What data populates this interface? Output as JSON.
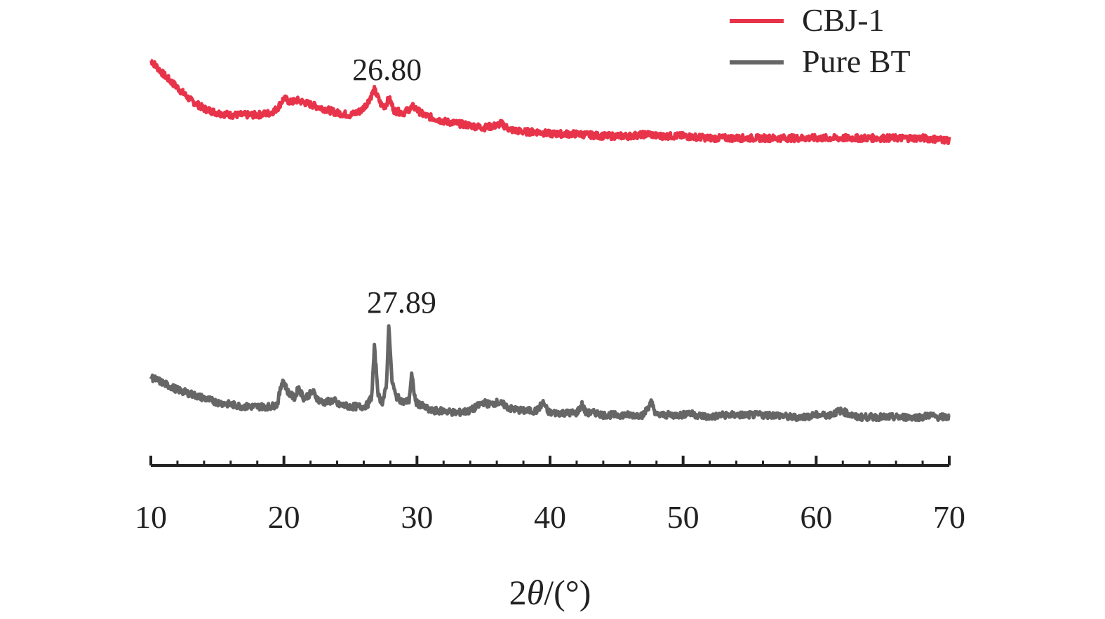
{
  "chart_data": {
    "type": "line",
    "xlabel_prefix": "2",
    "xlabel_symbol": "θ",
    "xlabel_suffix": "/(°)",
    "ylabel": "",
    "xlim": [
      10,
      70
    ],
    "x_ticks": [
      10,
      20,
      30,
      40,
      50,
      60,
      70
    ],
    "y_axis_visible": false,
    "grid": false,
    "legend_position": "top-right",
    "series": [
      {
        "name": "CBJ-1",
        "color": "#e8344a",
        "points": [
          [
            10,
            100
          ],
          [
            11,
            93
          ],
          [
            12,
            87
          ],
          [
            13,
            81
          ],
          [
            14,
            77
          ],
          [
            15,
            75
          ],
          [
            16,
            74
          ],
          [
            17,
            74
          ],
          [
            18,
            74
          ],
          [
            19,
            75
          ],
          [
            19.5,
            77
          ],
          [
            20,
            82
          ],
          [
            20.5,
            80
          ],
          [
            21,
            81
          ],
          [
            22,
            79
          ],
          [
            23,
            77
          ],
          [
            24,
            75
          ],
          [
            25,
            74
          ],
          [
            25.8,
            76
          ],
          [
            26.3,
            80
          ],
          [
            26.8,
            86
          ],
          [
            27.3,
            79
          ],
          [
            27.6,
            78
          ],
          [
            27.9,
            82
          ],
          [
            28.3,
            76
          ],
          [
            29,
            75
          ],
          [
            29.7,
            78
          ],
          [
            30.5,
            74
          ],
          [
            31,
            73
          ],
          [
            32,
            71
          ],
          [
            33,
            70
          ],
          [
            34,
            69
          ],
          [
            35,
            68
          ],
          [
            36,
            69
          ],
          [
            36.3,
            70
          ],
          [
            37,
            67
          ],
          [
            38,
            66
          ],
          [
            39,
            66
          ],
          [
            40,
            65
          ],
          [
            42,
            65
          ],
          [
            44,
            64
          ],
          [
            46,
            64
          ],
          [
            47.5,
            65
          ],
          [
            48,
            64
          ],
          [
            50,
            64
          ],
          [
            52,
            63
          ],
          [
            54,
            63
          ],
          [
            56,
            63
          ],
          [
            58,
            63
          ],
          [
            60,
            63
          ],
          [
            62,
            63
          ],
          [
            64,
            63
          ],
          [
            66,
            63
          ],
          [
            68,
            63
          ],
          [
            70,
            62
          ]
        ]
      },
      {
        "name": "Pure BT",
        "color": "#666666",
        "points": [
          [
            10,
            27
          ],
          [
            11,
            24
          ],
          [
            12,
            21
          ],
          [
            13,
            19
          ],
          [
            14,
            17
          ],
          [
            15,
            15
          ],
          [
            16,
            14
          ],
          [
            17,
            13
          ],
          [
            18,
            13
          ],
          [
            19,
            13
          ],
          [
            19.5,
            14
          ],
          [
            19.9,
            26
          ],
          [
            20.3,
            20
          ],
          [
            20.8,
            17
          ],
          [
            21.1,
            22
          ],
          [
            21.5,
            17
          ],
          [
            22.2,
            20
          ],
          [
            22.6,
            16
          ],
          [
            23,
            15
          ],
          [
            23.8,
            16
          ],
          [
            24,
            14
          ],
          [
            25,
            13
          ],
          [
            26,
            13
          ],
          [
            26.3,
            14
          ],
          [
            26.6,
            18
          ],
          [
            26.8,
            41
          ],
          [
            27.1,
            18
          ],
          [
            27.4,
            15
          ],
          [
            27.7,
            22
          ],
          [
            27.89,
            53
          ],
          [
            28.1,
            26
          ],
          [
            28.4,
            18
          ],
          [
            29,
            15
          ],
          [
            29.4,
            16
          ],
          [
            29.6,
            28
          ],
          [
            29.9,
            15
          ],
          [
            30.5,
            13
          ],
          [
            31,
            11
          ],
          [
            32,
            11
          ],
          [
            33,
            10
          ],
          [
            34,
            11
          ],
          [
            34.5,
            13
          ],
          [
            35,
            15
          ],
          [
            35.5,
            14
          ],
          [
            36,
            15
          ],
          [
            36.5,
            14
          ],
          [
            37,
            12
          ],
          [
            38,
            11
          ],
          [
            39,
            11
          ],
          [
            39.5,
            15
          ],
          [
            39.8,
            11
          ],
          [
            40,
            10
          ],
          [
            41,
            10
          ],
          [
            42,
            10
          ],
          [
            42.4,
            14
          ],
          [
            42.7,
            10
          ],
          [
            43.5,
            10
          ],
          [
            44,
            9
          ],
          [
            46,
            9
          ],
          [
            47,
            9
          ],
          [
            47.6,
            15
          ],
          [
            48,
            9
          ],
          [
            49,
            9
          ],
          [
            50,
            9
          ],
          [
            50.3,
            10
          ],
          [
            51,
            9
          ],
          [
            52,
            8
          ],
          [
            53,
            9
          ],
          [
            54,
            9
          ],
          [
            55,
            9
          ],
          [
            56,
            9
          ],
          [
            57,
            9
          ],
          [
            58,
            8
          ],
          [
            59,
            8
          ],
          [
            60,
            9
          ],
          [
            60.5,
            9
          ],
          [
            61,
            9
          ],
          [
            61.8,
            11
          ],
          [
            62.3,
            10
          ],
          [
            63,
            8
          ],
          [
            64,
            8
          ],
          [
            65,
            8
          ],
          [
            66,
            8
          ],
          [
            67,
            8
          ],
          [
            68,
            8
          ],
          [
            68.5,
            9
          ],
          [
            69,
            8
          ],
          [
            70,
            8
          ]
        ]
      }
    ],
    "annotations": [
      {
        "text": "26.80",
        "x": 26.8,
        "series": 0
      },
      {
        "text": "27.89",
        "x": 27.89,
        "series": 1
      }
    ]
  }
}
